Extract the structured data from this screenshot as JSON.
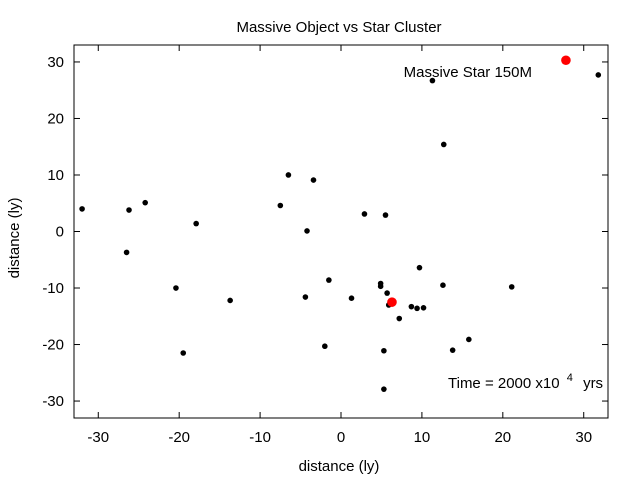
{
  "chart_data": {
    "type": "scatter",
    "title": "Massive Object vs Star Cluster",
    "xlabel": "distance (ly)",
    "ylabel": "distance (ly)",
    "xlim": [
      -33,
      33
    ],
    "ylim": [
      -33,
      33
    ],
    "xticks": [
      -30,
      -20,
      -10,
      0,
      10,
      20,
      30
    ],
    "yticks": [
      -30,
      -20,
      -10,
      0,
      10,
      20,
      30
    ],
    "grid": false,
    "colors": {
      "stars": "#000000",
      "massive": "#ff0000"
    },
    "series": [
      {
        "points": [
          [
            -32.0,
            4.0
          ],
          [
            -26.5,
            -3.7
          ],
          [
            -26.2,
            3.8
          ],
          [
            -24.2,
            5.1
          ],
          [
            -20.4,
            -10.0
          ],
          [
            -19.5,
            -21.5
          ],
          [
            -17.9,
            1.4
          ],
          [
            -13.7,
            -12.2
          ],
          [
            -7.5,
            4.6
          ],
          [
            -6.5,
            10.0
          ],
          [
            -4.4,
            -11.6
          ],
          [
            -4.2,
            0.1
          ],
          [
            -3.4,
            9.1
          ],
          [
            -2.0,
            -20.3
          ],
          [
            -1.5,
            -8.6
          ],
          [
            1.3,
            -11.8
          ],
          [
            2.9,
            3.1
          ],
          [
            4.9,
            -9.2
          ],
          [
            4.9,
            -9.7
          ],
          [
            5.3,
            -21.1
          ],
          [
            5.3,
            -27.9
          ],
          [
            5.5,
            2.9
          ],
          [
            5.7,
            -10.9
          ],
          [
            5.9,
            -13.0
          ],
          [
            7.2,
            -15.4
          ],
          [
            8.7,
            -13.3
          ],
          [
            9.4,
            -13.6
          ],
          [
            9.7,
            -6.4
          ],
          [
            10.2,
            -13.5
          ],
          [
            11.3,
            26.7
          ],
          [
            12.6,
            -9.5
          ],
          [
            12.7,
            15.4
          ],
          [
            13.8,
            -21.0
          ],
          [
            15.8,
            -19.1
          ],
          [
            21.1,
            -9.8
          ],
          [
            31.8,
            27.7
          ]
        ]
      },
      {
        "points": [
          [
            27.8,
            30.3
          ],
          [
            6.3,
            -12.5
          ]
        ]
      }
    ],
    "annotations": {
      "massive_label": "Massive Star 150M",
      "time_prefix": "Time = 2000 x10",
      "time_exponent": "4",
      "time_unit": "yrs"
    }
  }
}
